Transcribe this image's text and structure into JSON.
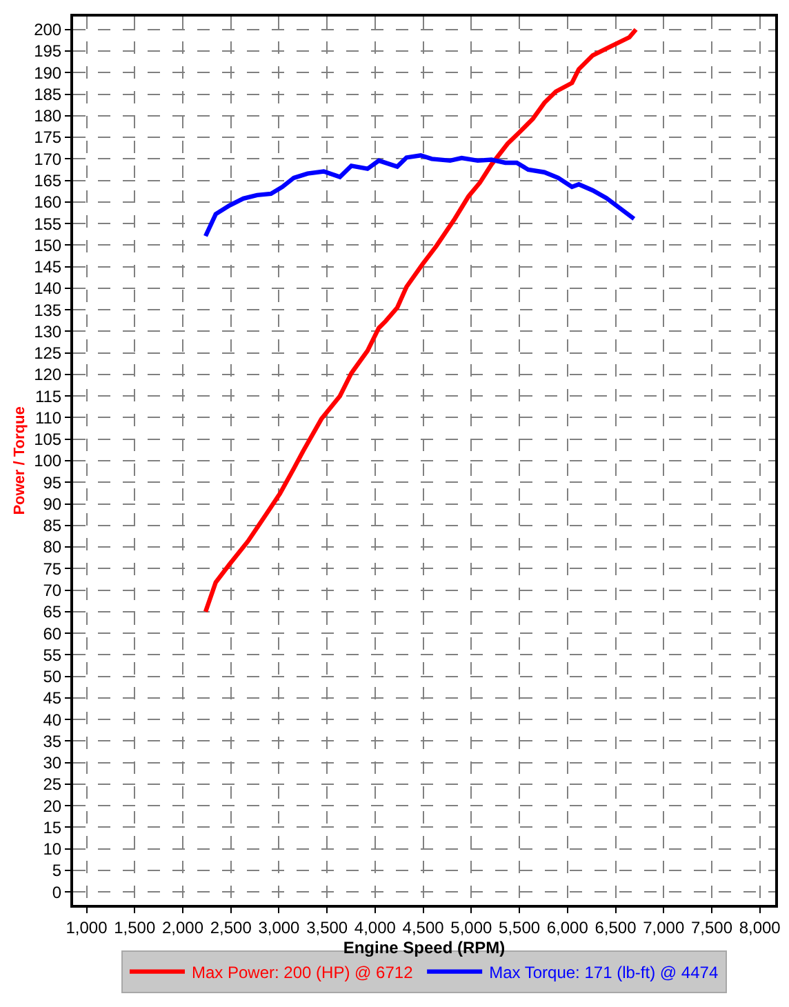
{
  "chart_data": {
    "type": "line",
    "xlabel": "Engine Speed (RPM)",
    "ylabel": "Power / Torque",
    "xlim": [
      860,
      8160
    ],
    "ylim": [
      -3,
      203
    ],
    "xticks": [
      {
        "value": 1000,
        "label": "1,000"
      },
      {
        "value": 1500,
        "label": "1,500"
      },
      {
        "value": 2000,
        "label": "2,000"
      },
      {
        "value": 2500,
        "label": "2,500"
      },
      {
        "value": 3000,
        "label": "3,000"
      },
      {
        "value": 3500,
        "label": "3,500"
      },
      {
        "value": 4000,
        "label": "4,000"
      },
      {
        "value": 4500,
        "label": "4,500"
      },
      {
        "value": 5000,
        "label": "5,000"
      },
      {
        "value": 5500,
        "label": "5,500"
      },
      {
        "value": 6000,
        "label": "6,000"
      },
      {
        "value": 6500,
        "label": "6,500"
      },
      {
        "value": 7000,
        "label": "7,000"
      },
      {
        "value": 7500,
        "label": "7,500"
      },
      {
        "value": 8000,
        "label": "8,000"
      }
    ],
    "yticks": [
      0,
      5,
      10,
      15,
      20,
      25,
      30,
      35,
      40,
      45,
      50,
      55,
      60,
      65,
      70,
      75,
      80,
      85,
      90,
      95,
      100,
      105,
      110,
      115,
      120,
      125,
      130,
      135,
      140,
      145,
      150,
      155,
      160,
      165,
      170,
      175,
      180,
      185,
      190,
      195,
      200
    ],
    "grid": true,
    "legend": "bottom",
    "marker": "none",
    "line_style": "solid",
    "series": [
      {
        "name": "Max Power: 200 (HP) @ 6712",
        "color": "#ff0000",
        "x": [
          2237,
          2343,
          2487,
          2677,
          2868,
          3011,
          3155,
          3251,
          3442,
          3634,
          3753,
          3921,
          4039,
          4111,
          4230,
          4326,
          4494,
          4637,
          4828,
          4971,
          5090,
          5210,
          5377,
          5497,
          5641,
          5760,
          5879,
          6047,
          6118,
          6262,
          6452,
          6644,
          6712
        ],
        "values": [
          65,
          71.8,
          76,
          81.3,
          87.6,
          92.4,
          98.2,
          102.2,
          109.7,
          115,
          120.3,
          125.5,
          130.8,
          132.4,
          135.5,
          140.3,
          145.6,
          149.8,
          156.1,
          161.3,
          164.5,
          168.7,
          173.5,
          176.1,
          179.3,
          183,
          185.6,
          187.6,
          190.8,
          194,
          196.1,
          198.2,
          200
        ]
      },
      {
        "name": "Max Torque: 171 (lb-ft) @ 4474",
        "color": "#0000ff",
        "x": [
          2237,
          2343,
          2487,
          2630,
          2773,
          2917,
          3036,
          3155,
          3298,
          3466,
          3634,
          3753,
          3921,
          4039,
          4230,
          4326,
          4474,
          4589,
          4780,
          4900,
          5067,
          5210,
          5354,
          5473,
          5592,
          5760,
          5903,
          6047,
          6118,
          6262,
          6405,
          6549,
          6692
        ],
        "values": [
          152.1,
          157.2,
          159.2,
          160.8,
          161.6,
          161.9,
          163.5,
          165.6,
          166.6,
          167.1,
          165.8,
          168.4,
          167.7,
          169.6,
          168.2,
          170.3,
          170.8,
          170,
          169.6,
          170.2,
          169.6,
          169.8,
          169.1,
          169.1,
          167.5,
          166.9,
          165.6,
          163.5,
          164.1,
          162.7,
          160.9,
          158.5,
          156.1
        ]
      }
    ]
  }
}
